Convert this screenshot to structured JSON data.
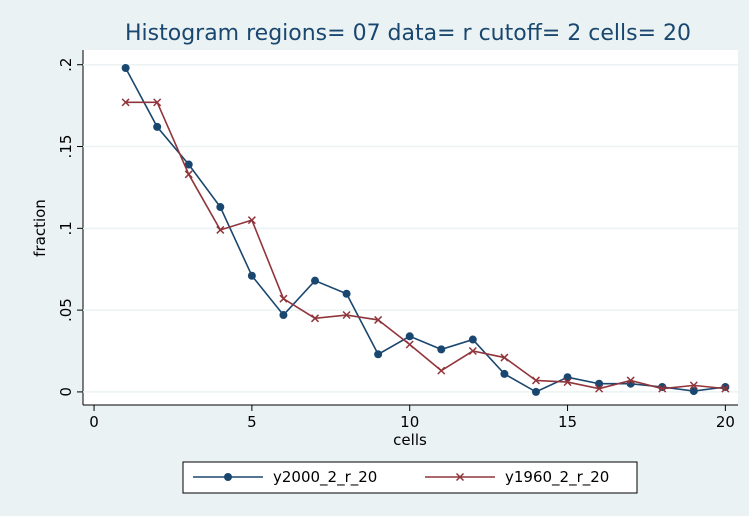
{
  "chart_data": {
    "type": "line",
    "title": "Histogram regions= 07 data= r cutoff= 2 cells= 20",
    "xlabel": "cells",
    "ylabel": "fraction",
    "x": [
      1,
      2,
      3,
      4,
      5,
      6,
      7,
      8,
      9,
      10,
      11,
      12,
      13,
      14,
      15,
      16,
      17,
      18,
      19,
      20
    ],
    "series": [
      {
        "name": "y2000_2_r_20",
        "color": "#1a476f",
        "marker": "circle",
        "values": [
          0.198,
          0.162,
          0.139,
          0.113,
          0.071,
          0.047,
          0.068,
          0.06,
          0.023,
          0.034,
          0.026,
          0.032,
          0.011,
          0.0,
          0.009,
          0.005,
          0.005,
          0.003,
          0.0005,
          0.003
        ]
      },
      {
        "name": "y1960_2_r_20",
        "color": "#90353b",
        "marker": "x",
        "values": [
          0.177,
          0.177,
          0.133,
          0.099,
          0.105,
          0.057,
          0.045,
          0.047,
          0.044,
          0.029,
          0.013,
          0.025,
          0.021,
          0.007,
          0.006,
          0.002,
          0.007,
          0.002,
          0.004,
          0.002
        ]
      }
    ],
    "xlim": [
      -0.35,
      20.4
    ],
    "xticks": [
      0,
      5,
      10,
      15,
      20
    ],
    "ylim": [
      -0.008,
      0.209
    ],
    "yticks": [
      {
        "value": 0,
        "label": "0"
      },
      {
        "value": 0.05,
        "label": ".05"
      },
      {
        "value": 0.1,
        "label": ".1"
      },
      {
        "value": 0.15,
        "label": ".15"
      },
      {
        "value": 0.2,
        "label": ".2"
      }
    ],
    "grid": true,
    "legend": "bottom"
  }
}
